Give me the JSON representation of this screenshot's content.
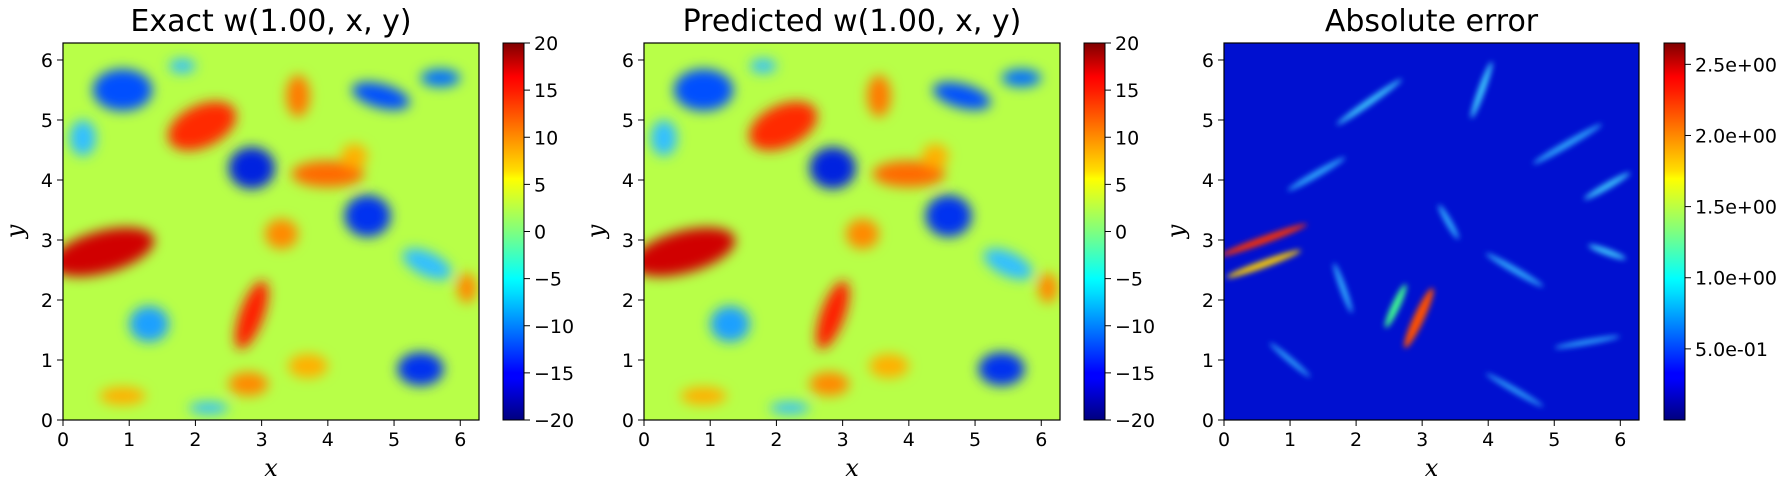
{
  "chart_data": [
    {
      "type": "heatmap",
      "title": "Exact w(1.00, x, y)",
      "xlabel": "x",
      "ylabel": "y",
      "xlim": [
        0,
        6.283
      ],
      "ylim": [
        0,
        6.283
      ],
      "x_ticks": [
        0,
        1,
        2,
        3,
        4,
        5,
        6
      ],
      "y_ticks": [
        0,
        1,
        2,
        3,
        4,
        5,
        6
      ],
      "colormap": "jet",
      "colorbar": {
        "min": -20,
        "max": 20,
        "ticks": [
          -20,
          -15,
          -10,
          -5,
          0,
          5,
          10,
          15,
          20
        ],
        "tick_labels": [
          "−20",
          "−15",
          "−10",
          "−5",
          "0",
          "5",
          "10",
          "15",
          "20"
        ]
      }
    },
    {
      "type": "heatmap",
      "title": "Predicted w(1.00, x, y)",
      "xlabel": "x",
      "ylabel": "y",
      "xlim": [
        0,
        6.283
      ],
      "ylim": [
        0,
        6.283
      ],
      "x_ticks": [
        0,
        1,
        2,
        3,
        4,
        5,
        6
      ],
      "y_ticks": [
        0,
        1,
        2,
        3,
        4,
        5,
        6
      ],
      "colormap": "jet",
      "colorbar": {
        "min": -20,
        "max": 20,
        "ticks": [
          -20,
          -15,
          -10,
          -5,
          0,
          5,
          10,
          15,
          20
        ],
        "tick_labels": [
          "−20",
          "−15",
          "−10",
          "−5",
          "0",
          "5",
          "10",
          "15",
          "20"
        ]
      }
    },
    {
      "type": "heatmap",
      "title": "Absolute error",
      "xlabel": "x",
      "ylabel": "y",
      "xlim": [
        0,
        6.283
      ],
      "ylim": [
        0,
        6.283
      ],
      "x_ticks": [
        0,
        1,
        2,
        3,
        4,
        5,
        6
      ],
      "y_ticks": [
        0,
        1,
        2,
        3,
        4,
        5,
        6
      ],
      "colormap": "jet",
      "colorbar": {
        "min": 0,
        "max": 2.65,
        "ticks": [
          0.5,
          1.0,
          1.5,
          2.0,
          2.5
        ],
        "tick_labels": [
          "5.0e-01",
          "1.0e+00",
          "1.5e+00",
          "2.0e+00",
          "2.5e+00"
        ]
      }
    }
  ]
}
